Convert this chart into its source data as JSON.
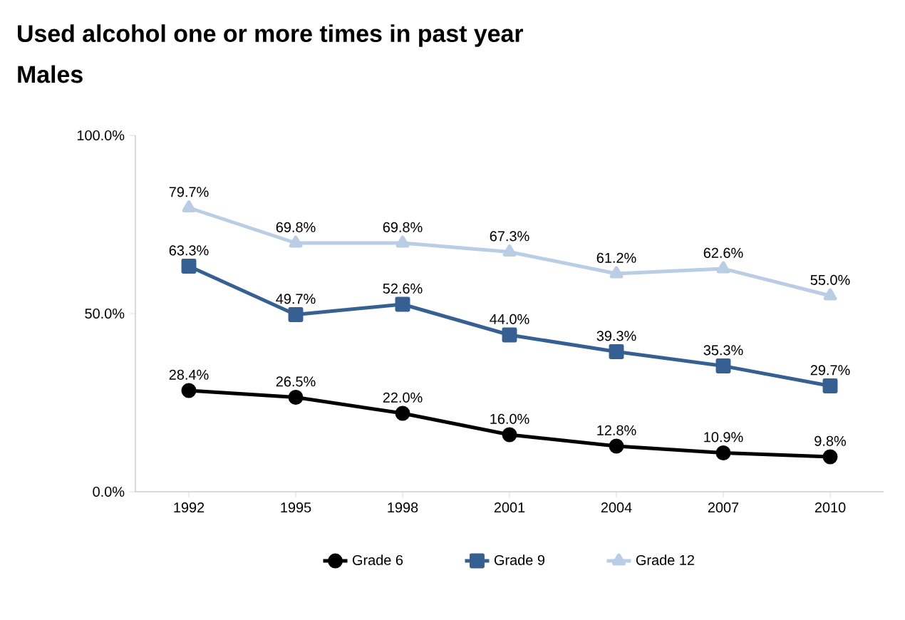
{
  "chart_data": {
    "type": "line",
    "title": "Used alcohol one or more times in past year",
    "subtitle": "Males",
    "categories": [
      "1992",
      "1995",
      "1998",
      "2001",
      "2004",
      "2007",
      "2010"
    ],
    "ylim": [
      0,
      100
    ],
    "yticks": [
      {
        "value": 0,
        "label": "0.0%"
      },
      {
        "value": 50,
        "label": "50.0%"
      },
      {
        "value": 100,
        "label": "100.0%"
      }
    ],
    "grid": false,
    "legend": "bottom",
    "series": [
      {
        "name": "Grade 6",
        "color": "#000000",
        "marker": "circle",
        "values": [
          28.4,
          26.5,
          22.0,
          16.0,
          12.8,
          10.9,
          9.8
        ],
        "value_labels": [
          "28.4%",
          "26.5%",
          "22.0%",
          "16.0%",
          "12.8%",
          "10.9%",
          "9.8%"
        ]
      },
      {
        "name": "Grade 9",
        "color": "#376092",
        "marker": "square",
        "values": [
          63.3,
          49.7,
          52.6,
          44.0,
          39.3,
          35.3,
          29.7
        ],
        "value_labels": [
          "63.3%",
          "49.7%",
          "52.6%",
          "44.0%",
          "39.3%",
          "35.3%",
          "29.7%"
        ]
      },
      {
        "name": "Grade 12",
        "color": "#b9cde5",
        "marker": "triangle",
        "values": [
          79.7,
          69.8,
          69.8,
          67.3,
          61.2,
          62.6,
          55.0
        ],
        "value_labels": [
          "79.7%",
          "69.8%",
          "69.8%",
          "67.3%",
          "61.2%",
          "62.6%",
          "55.0%"
        ]
      }
    ]
  }
}
